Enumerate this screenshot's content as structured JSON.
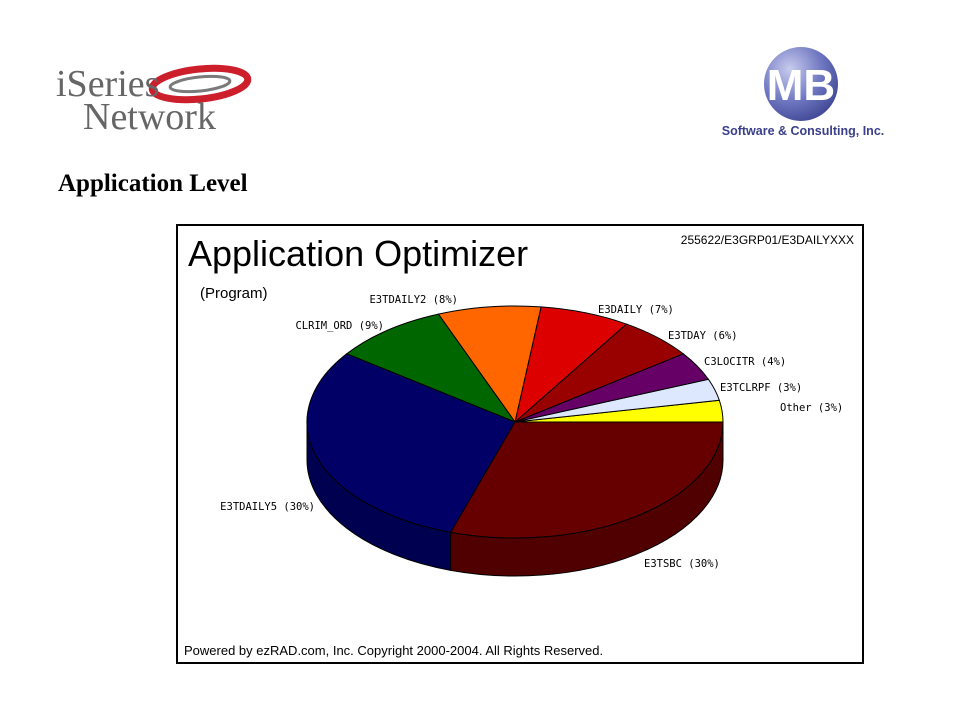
{
  "logos": {
    "left": {
      "line1": "iSeries",
      "line2": "Network"
    },
    "right": {
      "mark": "MB",
      "tagline": "Software & Consulting, Inc."
    }
  },
  "slide": {
    "title": "Application Level"
  },
  "chart_data": {
    "type": "pie",
    "title": "Application Optimizer",
    "subtitle": "(Program)",
    "identifier": "255622/E3GRP01/E3DAILYXXX",
    "footer": "Powered by ezRAD.com, Inc. Copyright 2000-2004.  All Rights Reserved.",
    "slices": [
      {
        "label": "Other (3%)",
        "value": 3,
        "color": "#ffff00"
      },
      {
        "label": "E3TCLRPF (3%)",
        "value": 3,
        "color": "#dde8ff"
      },
      {
        "label": "C3LOCITR (4%)",
        "value": 4,
        "color": "#660066"
      },
      {
        "label": "E3TDAY (6%)",
        "value": 6,
        "color": "#990000"
      },
      {
        "label": "E3DAILY (7%)",
        "value": 7,
        "color": "#dd0000"
      },
      {
        "label": "E3TDAILY2 (8%)",
        "value": 8,
        "color": "#ff6600"
      },
      {
        "label": "CLRIM_ORD (9%)",
        "value": 9,
        "color": "#006600"
      },
      {
        "label": "E3TDAILY5 (30%)",
        "value": 30,
        "color": "#000066"
      },
      {
        "label": "E3TSBC (30%)",
        "value": 30,
        "color": "#660000"
      }
    ]
  }
}
